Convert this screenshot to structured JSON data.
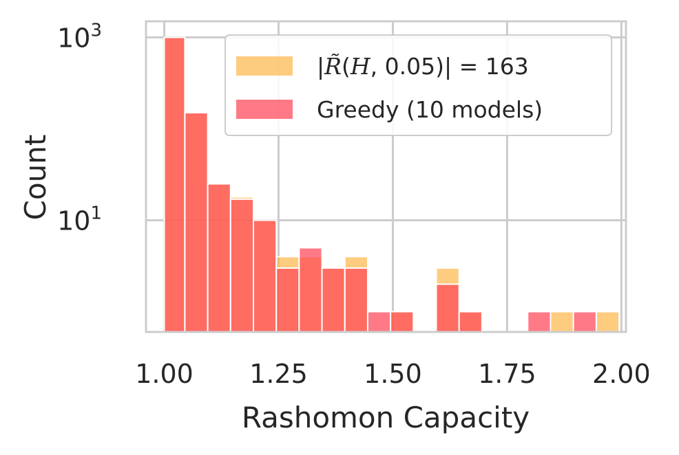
{
  "chart_data": {
    "type": "bar",
    "xlabel": "Rashomon Capacity",
    "ylabel": "Count",
    "yscale": "log",
    "xlim": [
      0.96,
      2.01
    ],
    "ylim": [
      0.6,
      1500
    ],
    "grid": true,
    "legend_position": "top-right",
    "x_ticks": [
      "1.00",
      "1.25",
      "1.50",
      "1.75",
      "2.00"
    ],
    "y_ticks": [
      {
        "value": 10,
        "base": "10",
        "exp": "1"
      },
      {
        "value": 1000,
        "base": "10",
        "exp": "3"
      }
    ],
    "series": [
      {
        "name": "|R̃(H, 0.05)| = 163",
        "color": "#fdb94e",
        "bins": [
          {
            "x0": 1.0,
            "x1": 1.045,
            "count": 1000
          },
          {
            "x0": 1.045,
            "x1": 1.095,
            "count": 150
          },
          {
            "x0": 1.095,
            "x1": 1.145,
            "count": 25
          },
          {
            "x0": 1.145,
            "x1": 1.195,
            "count": 18
          },
          {
            "x0": 1.195,
            "x1": 1.245,
            "count": 10
          },
          {
            "x0": 1.245,
            "x1": 1.295,
            "count": 4
          },
          {
            "x0": 1.295,
            "x1": 1.345,
            "count": 4
          },
          {
            "x0": 1.345,
            "x1": 1.395,
            "count": 3
          },
          {
            "x0": 1.395,
            "x1": 1.445,
            "count": 4
          },
          {
            "x0": 1.495,
            "x1": 1.545,
            "count": 1
          },
          {
            "x0": 1.595,
            "x1": 1.645,
            "count": 3
          },
          {
            "x0": 1.645,
            "x1": 1.695,
            "count": 1
          },
          {
            "x0": 1.845,
            "x1": 1.895,
            "count": 1
          },
          {
            "x0": 1.945,
            "x1": 1.995,
            "count": 1
          }
        ]
      },
      {
        "name": "Greedy (10 models)",
        "color": "#ff4757",
        "bins": [
          {
            "x0": 1.0,
            "x1": 1.045,
            "count": 1000
          },
          {
            "x0": 1.045,
            "x1": 1.095,
            "count": 150
          },
          {
            "x0": 1.095,
            "x1": 1.145,
            "count": 25
          },
          {
            "x0": 1.145,
            "x1": 1.195,
            "count": 17
          },
          {
            "x0": 1.195,
            "x1": 1.245,
            "count": 10
          },
          {
            "x0": 1.245,
            "x1": 1.295,
            "count": 3
          },
          {
            "x0": 1.295,
            "x1": 1.345,
            "count": 5
          },
          {
            "x0": 1.345,
            "x1": 1.395,
            "count": 3
          },
          {
            "x0": 1.395,
            "x1": 1.445,
            "count": 3
          },
          {
            "x0": 1.445,
            "x1": 1.495,
            "count": 1
          },
          {
            "x0": 1.495,
            "x1": 1.545,
            "count": 1
          },
          {
            "x0": 1.595,
            "x1": 1.645,
            "count": 2
          },
          {
            "x0": 1.645,
            "x1": 1.695,
            "count": 1
          },
          {
            "x0": 1.795,
            "x1": 1.845,
            "count": 1
          },
          {
            "x0": 1.895,
            "x1": 1.945,
            "count": 1
          }
        ]
      }
    ],
    "overlap_color": "#ff6340"
  }
}
